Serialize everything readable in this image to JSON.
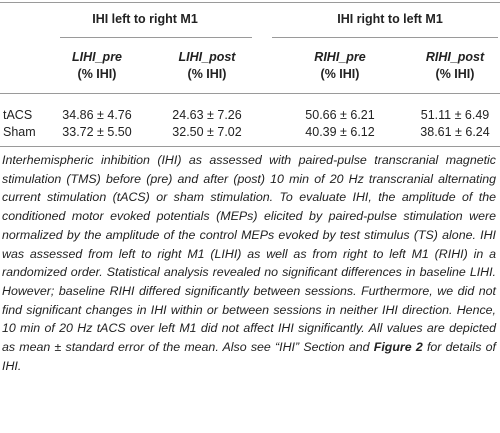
{
  "table": {
    "groups": [
      "IHI left to right M1",
      "IHI right to left M1"
    ],
    "columns": [
      {
        "name": "LIHI_pre",
        "unit": "(% IHI)"
      },
      {
        "name": "LIHI_post",
        "unit": "(% IHI)"
      },
      {
        "name": "RIHI_pre",
        "unit": "(% IHI)"
      },
      {
        "name": "RIHI_post",
        "unit": "(% IHI)"
      }
    ],
    "rows": [
      [
        "tACS",
        "34.86 ± 4.76",
        "24.63 ± 7.26",
        "50.66 ± 6.21",
        "51.11 ± 6.49"
      ],
      [
        "Sham",
        "33.72 ± 5.50",
        "32.50 ± 7.02",
        "40.39 ± 6.12",
        "38.61 ± 6.24"
      ]
    ]
  },
  "caption": {
    "text": "Interhemispheric inhibition (IHI) as assessed with paired-pulse transcranial magnetic stimulation (TMS) before (pre) and after (post) 10 min of 20 Hz transcranial alternating current stimulation (tACS) or sham stimulation. To evaluate IHI, the amplitude of the conditioned motor evoked potentials (MEPs) elicited by paired-pulse stimulation were normalized by the amplitude of the control MEPs evoked by test stimulus (TS) alone. IHI was assessed from left to right M1 (LIHI) as well as from right to left M1 (RIHI) in a randomized order. Statistical analysis revealed no significant differences in baseline LIHI. However; baseline RIHI differed significantly between sessions. Furthermore, we did not find significant changes in IHI within or between sessions in neither IHI direction. Hence, 10 min of 20 Hz tACS over left M1 did not affect IHI significantly. All values are depicted as mean ± standard error of the mean. Also see “IHI” Section and ",
    "figure_ref": "Figure 2",
    "text_end": " for details of IHI."
  }
}
